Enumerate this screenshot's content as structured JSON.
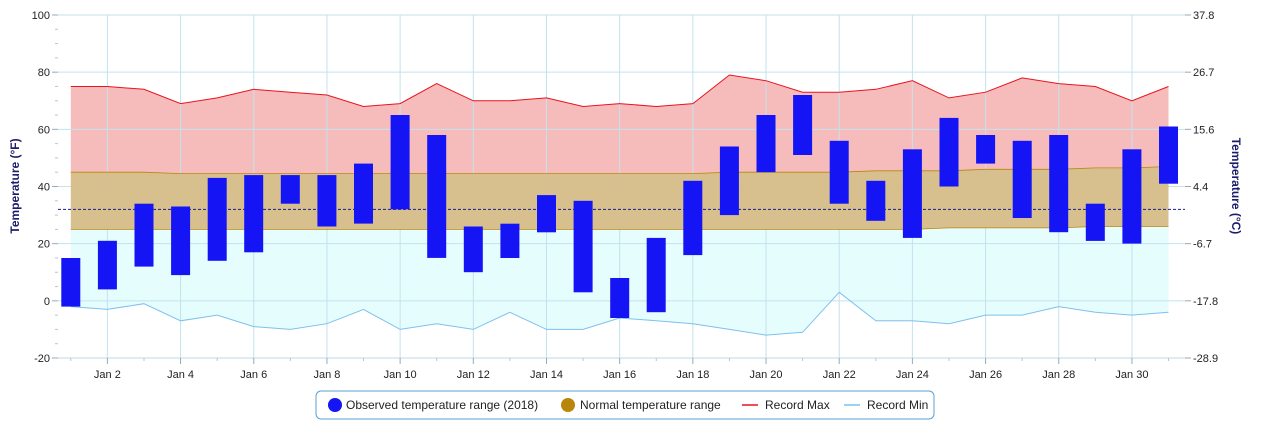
{
  "chart_data": {
    "type": "bar",
    "ylabel_left": "Temperature (°F)",
    "ylabel_right": "Temperature (°C)",
    "ylim": [
      -20,
      100
    ],
    "y_ticks": [
      -20,
      0,
      20,
      40,
      60,
      80,
      100
    ],
    "y_ticks_right": [
      "-28.9",
      "-17.8",
      "-6.7",
      "4.4",
      "15.6",
      "26.7",
      "37.8"
    ],
    "x_tick_labels": [
      {
        "day": 2,
        "label": "Jan 2"
      },
      {
        "day": 4,
        "label": "Jan 4"
      },
      {
        "day": 6,
        "label": "Jan 6"
      },
      {
        "day": 8,
        "label": "Jan 8"
      },
      {
        "day": 10,
        "label": "Jan 10"
      },
      {
        "day": 12,
        "label": "Jan 12"
      },
      {
        "day": 14,
        "label": "Jan 14"
      },
      {
        "day": 16,
        "label": "Jan 16"
      },
      {
        "day": 18,
        "label": "Jan 18"
      },
      {
        "day": 20,
        "label": "Jan 20"
      },
      {
        "day": 22,
        "label": "Jan 22"
      },
      {
        "day": 24,
        "label": "Jan 24"
      },
      {
        "day": 26,
        "label": "Jan 26"
      },
      {
        "day": 28,
        "label": "Jan 28"
      },
      {
        "day": 30,
        "label": "Jan 30"
      }
    ],
    "days": [
      1,
      2,
      3,
      4,
      5,
      6,
      7,
      8,
      9,
      10,
      11,
      12,
      13,
      14,
      15,
      16,
      17,
      18,
      19,
      20,
      21,
      22,
      23,
      24,
      25,
      26,
      27,
      28,
      29,
      30,
      31
    ],
    "freezing_line": 32,
    "grid": true,
    "legend_position": "bottom-center",
    "series": [
      {
        "name": "Observed temperature range (2018)",
        "kind": "columnrange",
        "color": "#1414f5",
        "low": [
          -2,
          4,
          12,
          9,
          14,
          17,
          34,
          26,
          27,
          32,
          15,
          10,
          15,
          24,
          3,
          -6,
          -4,
          16,
          30,
          45,
          51,
          34,
          28,
          22,
          40,
          48,
          29,
          24,
          21,
          20,
          41
        ],
        "high": [
          15,
          21,
          34,
          33,
          43,
          44,
          44,
          44,
          48,
          65,
          58,
          26,
          27,
          37,
          35,
          8,
          22,
          42,
          54,
          65,
          72,
          56,
          42,
          53,
          64,
          58,
          56,
          58,
          34,
          53,
          61
        ]
      },
      {
        "name": "Normal temperature range",
        "kind": "arearange",
        "color": "#b8860b",
        "low": [
          25,
          25,
          25,
          25,
          25,
          25,
          25,
          25,
          25,
          25,
          25,
          25,
          25,
          25,
          25,
          25,
          25,
          25,
          25,
          25,
          25,
          25,
          25,
          25,
          25.5,
          25.5,
          25.5,
          25.5,
          26,
          26,
          26
        ],
        "high": [
          45,
          45,
          45,
          44.5,
          44.5,
          44.5,
          44.5,
          44.5,
          44.5,
          44.5,
          44.5,
          44.5,
          44.5,
          44.5,
          44.5,
          44.5,
          44.5,
          44.5,
          45,
          45,
          45,
          45,
          45.5,
          45.5,
          45.5,
          46,
          46,
          46,
          46.5,
          46.5,
          47
        ]
      },
      {
        "name": "Record Max",
        "kind": "line",
        "color": "#e8141e",
        "values": [
          75,
          75,
          74,
          69,
          71,
          74,
          73,
          72,
          68,
          69,
          76,
          70,
          70,
          71,
          68,
          69,
          68,
          69,
          79,
          77,
          73,
          73,
          74,
          77,
          71,
          73,
          78,
          76,
          75,
          70,
          75
        ]
      },
      {
        "name": "Record Min",
        "kind": "line",
        "color": "#7ec0ee",
        "values": [
          -2,
          -3,
          -1,
          -7,
          -5,
          -9,
          -10,
          -8,
          -3,
          -10,
          -8,
          -10,
          -4,
          -10,
          -10,
          -6,
          -7,
          -8,
          -10,
          -12,
          -11,
          3,
          -7,
          -7,
          -8,
          -5,
          -5,
          -2,
          -4,
          -5,
          -4
        ]
      }
    ],
    "colors": {
      "record_fill": "#f6bcbc",
      "normal_fill": "#d5bd88",
      "cold_fill": "#e6fdfd",
      "grid": "#c3e2ee",
      "freezing_line": "#1c1c8a",
      "axis_title": "#1c1c6b"
    }
  }
}
